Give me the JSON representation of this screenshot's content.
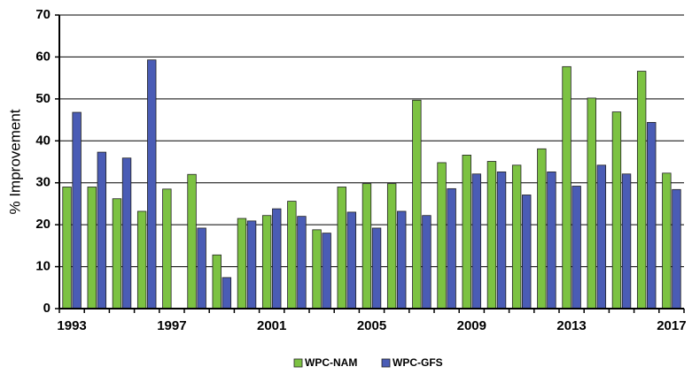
{
  "chart_data": {
    "type": "bar",
    "categories": [
      "1993",
      null,
      null,
      null,
      "1997",
      null,
      null,
      null,
      "2001",
      null,
      null,
      null,
      "2005",
      null,
      null,
      null,
      "2009",
      null,
      null,
      null,
      "2013",
      null,
      null,
      null,
      "2017"
    ],
    "series": [
      {
        "name": "WPC-NAM",
        "color": "#7cc242",
        "values": [
          29,
          29,
          26.2,
          23.2,
          28.5,
          32,
          12.8,
          21.5,
          22.2,
          25.6,
          18.8,
          29,
          29.8,
          29.8,
          49.7,
          34.8,
          36.6,
          35.1,
          34.2,
          38.1,
          57.7,
          50.2,
          46.9,
          56.6,
          32.3
        ]
      },
      {
        "name": "WPC-GFS",
        "color": "#4a5cb5",
        "values": [
          46.8,
          37.3,
          35.9,
          59.3,
          null,
          19.2,
          7.4,
          20.9,
          23.8,
          22,
          18,
          23,
          19.2,
          23.2,
          22.2,
          28.6,
          32.1,
          32.6,
          27.1,
          32.6,
          29.2,
          34.2,
          32.1,
          44.4,
          28.4
        ]
      }
    ],
    "y_label": "% Improvement",
    "ylim": [
      0,
      70
    ],
    "yticks": [
      0,
      10,
      20,
      30,
      40,
      50,
      60,
      70
    ],
    "grid": true,
    "legend": "bottom"
  }
}
